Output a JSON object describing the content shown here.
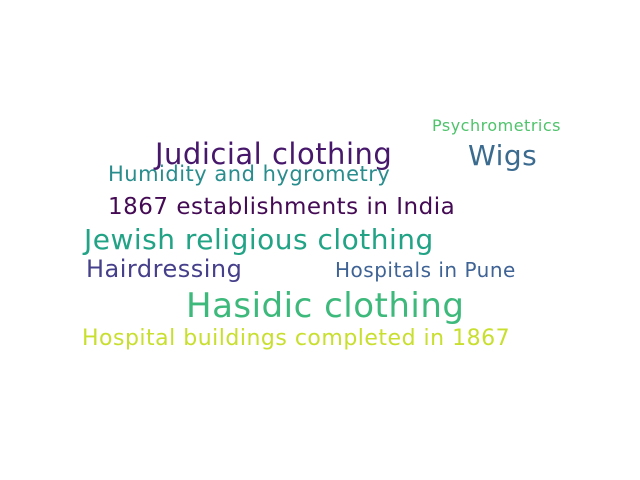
{
  "words": [
    {
      "id": "psychrometrics",
      "text": "Psychrometrics",
      "color": "#4ec36b"
    },
    {
      "id": "judicial",
      "text": "Judicial clothing",
      "color": "#46176a"
    },
    {
      "id": "wigs",
      "text": "Wigs",
      "color": "#3b6b8f"
    },
    {
      "id": "humidity",
      "text": "Humidity and hygrometry",
      "color": "#2a8d8d"
    },
    {
      "id": "1867est",
      "text": "1867 establishments in India",
      "color": "#440b54"
    },
    {
      "id": "jewish",
      "text": "Jewish religious clothing",
      "color": "#22a386"
    },
    {
      "id": "hairdressing",
      "text": "Hairdressing",
      "color": "#46408a"
    },
    {
      "id": "hosp_pune",
      "text": "Hospitals in Pune",
      "color": "#3f6395"
    },
    {
      "id": "hasidic",
      "text": "Hasidic clothing",
      "color": "#3eb97c"
    },
    {
      "id": "hosp_bldg",
      "text": "Hospital buildings completed in 1867",
      "color": "#c8df2f"
    }
  ]
}
